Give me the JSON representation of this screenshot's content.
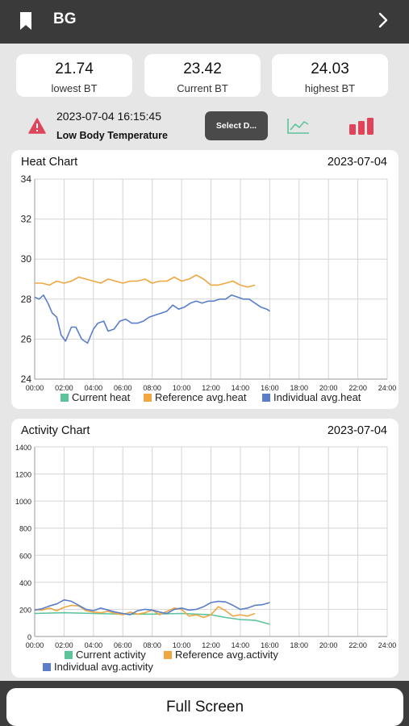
{
  "header": {
    "title": "BG"
  },
  "stats": [
    {
      "value": "21.74",
      "label": "lowest BT"
    },
    {
      "value": "23.42",
      "label": "Current BT"
    },
    {
      "value": "24.03",
      "label": "highest BT"
    }
  ],
  "alert": {
    "time": "2023-07-04 16:15:45",
    "message": "Low Body Temperature"
  },
  "toolbar": {
    "select_label": "Select D..."
  },
  "colors": {
    "green": "#5cc49a",
    "orange": "#f0a742",
    "blue": "#5a7ec9",
    "red": "#e0445a",
    "header": "#3a3a3a"
  },
  "icons": {
    "back": "bookmark-icon",
    "next": "chevron-right-icon",
    "warning": "warning-icon",
    "line": "line-chart-icon",
    "bar": "bar-chart-icon"
  },
  "chart_data": [
    {
      "type": "line",
      "title": "Heat Chart",
      "date": "2023-07-04",
      "x_ticks": [
        "00:00",
        "02:00",
        "04:00",
        "06:00",
        "08:00",
        "10:00",
        "12:00",
        "14:00",
        "16:00",
        "18:00",
        "20:00",
        "22:00",
        "24:00"
      ],
      "xlim": [
        0,
        24
      ],
      "ylim": [
        24,
        34
      ],
      "y_ticks": [
        "24",
        "26",
        "28",
        "30",
        "32",
        "34"
      ],
      "grid": true,
      "legend_position": "bottom",
      "series": [
        {
          "name": "Current heat",
          "color": "#5cc49a",
          "x": [],
          "values": []
        },
        {
          "name": "Reference avg.heat",
          "color": "#f0a742",
          "x": [
            0,
            0.5,
            1,
            1.5,
            2,
            2.5,
            3,
            3.5,
            4,
            4.5,
            5,
            5.5,
            6,
            6.5,
            7,
            7.5,
            8,
            8.5,
            9,
            9.5,
            10,
            10.5,
            11,
            11.5,
            12,
            12.5,
            13,
            13.5,
            14,
            14.5,
            15
          ],
          "values": [
            28.8,
            28.8,
            28.7,
            28.9,
            28.8,
            28.9,
            29.1,
            29.0,
            28.9,
            28.8,
            29.0,
            28.9,
            28.8,
            28.9,
            28.9,
            29.0,
            28.8,
            28.9,
            28.9,
            29.1,
            28.9,
            29.0,
            29.2,
            29.0,
            28.7,
            28.7,
            28.8,
            28.9,
            28.7,
            28.6,
            28.7
          ]
        },
        {
          "name": "Individual avg.heat",
          "color": "#5a7ec9",
          "x": [
            0,
            0.3,
            0.6,
            0.9,
            1.2,
            1.5,
            1.8,
            2.1,
            2.5,
            2.8,
            3.2,
            3.6,
            4,
            4.3,
            4.7,
            5,
            5.4,
            5.8,
            6.2,
            6.6,
            7,
            7.4,
            7.8,
            8.2,
            8.6,
            9,
            9.4,
            9.8,
            10.2,
            10.6,
            11,
            11.4,
            11.8,
            12.2,
            12.6,
            13,
            13.4,
            13.8,
            14.2,
            14.6,
            15,
            15.4,
            15.8,
            16
          ],
          "values": [
            28.1,
            28.0,
            28.2,
            27.8,
            27.3,
            27.1,
            26.2,
            25.9,
            26.6,
            26.6,
            26.0,
            25.8,
            26.5,
            26.8,
            26.9,
            26.4,
            26.5,
            26.9,
            27.0,
            26.8,
            26.8,
            26.9,
            27.1,
            27.2,
            27.3,
            27.4,
            27.7,
            27.5,
            27.6,
            27.8,
            27.9,
            27.8,
            27.9,
            27.9,
            28.0,
            28.0,
            28.2,
            28.1,
            28.0,
            28.0,
            27.8,
            27.6,
            27.5,
            27.4
          ]
        }
      ]
    },
    {
      "type": "line",
      "title": "Activity Chart",
      "date": "2023-07-04",
      "x_ticks": [
        "00:00",
        "02:00",
        "04:00",
        "06:00",
        "08:00",
        "10:00",
        "12:00",
        "14:00",
        "16:00",
        "18:00",
        "20:00",
        "22:00",
        "24:00"
      ],
      "xlim": [
        0,
        24
      ],
      "ylim": [
        0,
        1400
      ],
      "y_ticks": [
        "0",
        "200",
        "400",
        "600",
        "800",
        "1000",
        "1200",
        "1400"
      ],
      "grid": true,
      "legend_position": "bottom",
      "series": [
        {
          "name": "Current activity",
          "color": "#5cc49a",
          "x": [
            0,
            2,
            4,
            6,
            8,
            10,
            12,
            13,
            14,
            15,
            16
          ],
          "values": [
            170,
            175,
            170,
            165,
            165,
            170,
            160,
            140,
            125,
            120,
            90
          ]
        },
        {
          "name": "Reference avg.activity",
          "color": "#f0a742",
          "x": [
            0,
            0.5,
            1,
            1.5,
            2,
            2.5,
            3,
            3.5,
            4,
            4.5,
            5,
            5.5,
            6,
            6.5,
            7,
            7.5,
            8,
            8.5,
            9,
            9.5,
            10,
            10.5,
            11,
            11.5,
            12,
            12.5,
            13,
            13.5,
            14,
            14.5,
            15
          ],
          "values": [
            200,
            195,
            210,
            190,
            215,
            230,
            225,
            190,
            180,
            175,
            185,
            170,
            160,
            180,
            165,
            175,
            195,
            160,
            185,
            210,
            200,
            150,
            160,
            140,
            160,
            220,
            190,
            150,
            160,
            150,
            170
          ]
        },
        {
          "name": "Individual avg.activity",
          "color": "#5a7ec9",
          "x": [
            0,
            0.5,
            1,
            1.5,
            2,
            2.5,
            3,
            3.5,
            4,
            4.5,
            5,
            5.5,
            6,
            6.5,
            7,
            7.5,
            8,
            8.5,
            9,
            9.5,
            10,
            10.5,
            11,
            11.5,
            12,
            12.5,
            13,
            13.5,
            14,
            14.5,
            15,
            15.5,
            16
          ],
          "values": [
            195,
            205,
            225,
            240,
            270,
            260,
            230,
            200,
            190,
            210,
            195,
            180,
            170,
            160,
            190,
            200,
            195,
            180,
            170,
            200,
            210,
            195,
            200,
            220,
            250,
            260,
            255,
            230,
            200,
            210,
            230,
            235,
            250
          ]
        }
      ]
    }
  ],
  "footer": {
    "button_label": "Full Screen"
  }
}
